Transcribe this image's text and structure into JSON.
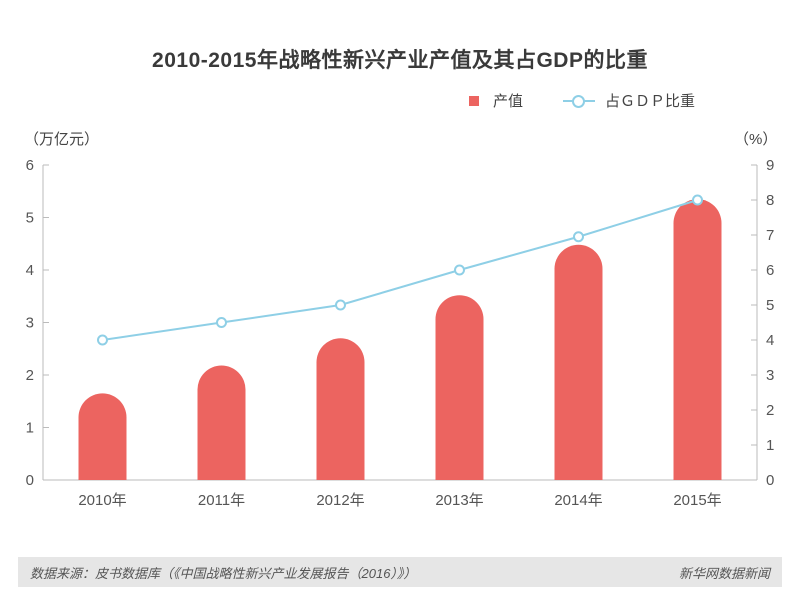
{
  "chart_data": {
    "type": "bar",
    "title": "2010-2015年战略性新兴产业产值及其占GDP的比重",
    "categories": [
      "2010年",
      "2011年",
      "2012年",
      "2013年",
      "2014年",
      "2015年"
    ],
    "series": [
      {
        "name": "产值",
        "type": "bar",
        "axis": "left",
        "color": "#ec6460",
        "values": [
          1.65,
          2.18,
          2.7,
          3.52,
          4.48,
          5.35
        ]
      },
      {
        "name": "占ＧＤＰ比重",
        "type": "line",
        "axis": "right",
        "color": "#8ecfe6",
        "values": [
          4.0,
          4.5,
          5.0,
          6.0,
          6.95,
          8.0
        ]
      }
    ],
    "ylabel": "（万亿元）",
    "ylabel_right": "（%）",
    "ylim": [
      0,
      6
    ],
    "ylim_right": [
      0,
      9
    ],
    "yticks": [
      "0",
      "1",
      "2",
      "3",
      "4",
      "5",
      "6"
    ],
    "yticks_right": [
      "0",
      "1",
      "2",
      "3",
      "4",
      "5",
      "6",
      "7",
      "8",
      "9"
    ],
    "grid": false,
    "legend_position": "top-right"
  },
  "footer": {
    "source": "数据来源：皮书数据库（《中国战略性新兴产业发展报告（2016）》）",
    "credit": "新华网数据新闻"
  }
}
